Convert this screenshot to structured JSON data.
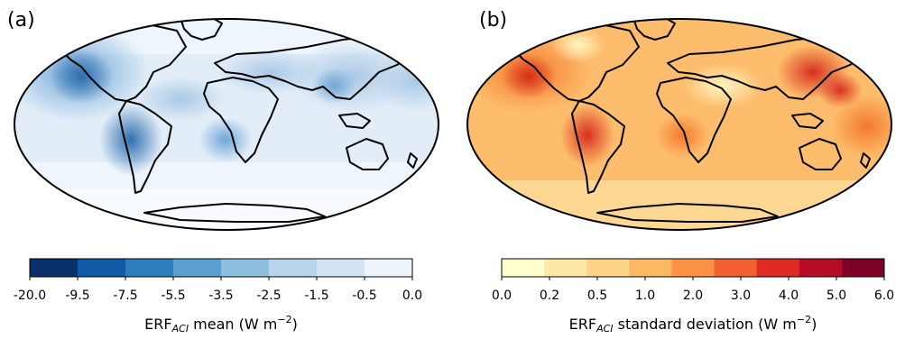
{
  "panels": [
    {
      "label": "(a)",
      "colorbar": {
        "ticks": [
          "-20.0",
          "-9.5",
          "-7.5",
          "-5.5",
          "-3.5",
          "-2.5",
          "-1.5",
          "-0.5",
          "0.0"
        ],
        "colors": [
          "#08306b",
          "#0f5aa6",
          "#2d7cbc",
          "#5a9fd0",
          "#8fbfe0",
          "#b7d4ea",
          "#d3e3f3",
          "#edf4fc"
        ],
        "title": {
          "prefix": "ERF",
          "sub": "ACI",
          "rest": " mean (W m",
          "sup": "−2",
          "close": ")"
        }
      }
    },
    {
      "label": "(b)",
      "colorbar": {
        "ticks": [
          "0.0",
          "0.2",
          "0.5",
          "1.0",
          "2.0",
          "3.0",
          "4.0",
          "5.0",
          "6.0"
        ],
        "colors": [
          "#ffffcc",
          "#fee8a5",
          "#fed488",
          "#fdb863",
          "#fd9244",
          "#f46130",
          "#e02b23",
          "#b80d26",
          "#7f0126"
        ],
        "title": {
          "prefix": "ERF",
          "sub": "ACI",
          "rest": " standard deviation (W m",
          "sup": "−2",
          "close": ")"
        }
      }
    }
  ]
}
